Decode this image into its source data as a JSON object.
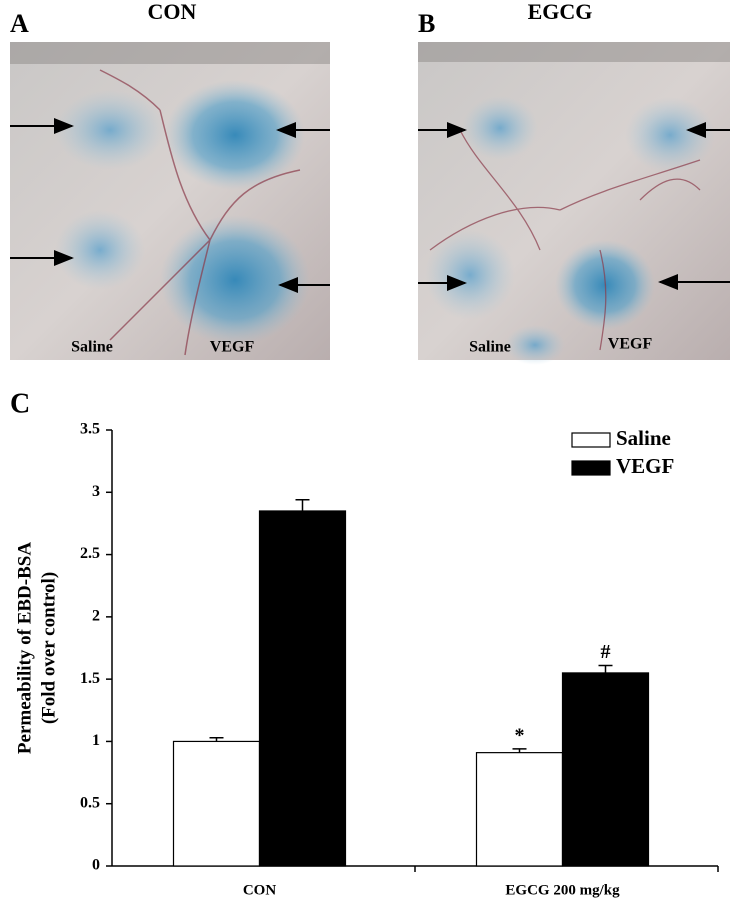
{
  "panels": [
    {
      "letter": "A",
      "title": "CON",
      "labels": [
        "Saline",
        "VEGF"
      ]
    },
    {
      "letter": "B",
      "title": "EGCG",
      "labels": [
        "Saline",
        "VEGF"
      ]
    }
  ],
  "chart_data": {
    "type": "bar",
    "panel": "C",
    "ylabel": [
      "Permeability of EBD-BSA",
      "(Fold over control)"
    ],
    "categories": [
      "CON",
      "EGCG 200 mg/kg"
    ],
    "series": [
      {
        "name": "Saline",
        "color": "#ffffff",
        "values": [
          1.0,
          0.91
        ],
        "errors": [
          0.03,
          0.03
        ],
        "annotations": [
          null,
          "*"
        ]
      },
      {
        "name": "VEGF",
        "color": "#000000",
        "values": [
          2.85,
          1.55
        ],
        "errors": [
          0.09,
          0.06
        ],
        "annotations": [
          null,
          "#"
        ]
      }
    ],
    "ylim": [
      0,
      3.5
    ],
    "yticks": [
      0,
      0.5,
      1,
      1.5,
      2,
      2.5,
      3,
      3.5
    ],
    "legend": "upper right",
    "grid": false
  }
}
